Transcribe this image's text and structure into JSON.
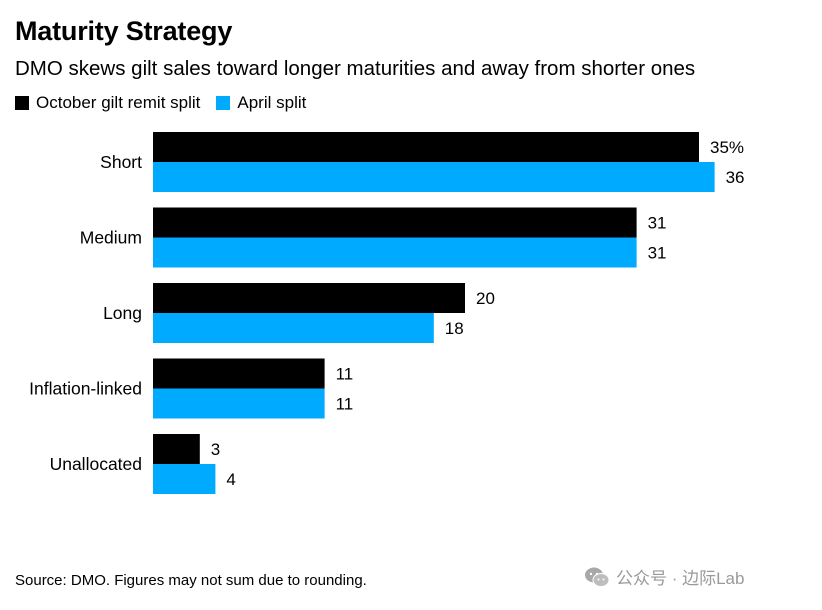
{
  "header": {
    "title": "Maturity Strategy",
    "subtitle": "DMO skews gilt sales toward longer maturities and away from shorter ones"
  },
  "colors": {
    "october": "#000000",
    "april": "#00aaff"
  },
  "chart_data": {
    "type": "bar",
    "orientation": "horizontal",
    "categories": [
      "Short",
      "Medium",
      "Long",
      "Inflation-linked",
      "Unallocated"
    ],
    "series": [
      {
        "name": "October gilt remit split",
        "values": [
          35,
          31,
          20,
          11,
          3
        ],
        "labels": [
          "35%",
          "31",
          "20",
          "11",
          "3"
        ]
      },
      {
        "name": "April split",
        "values": [
          36,
          31,
          18,
          11,
          4
        ],
        "labels": [
          "36",
          "31",
          "18",
          "11",
          "4"
        ]
      }
    ],
    "legend_position": "top-left",
    "grid": false
  },
  "footer": {
    "source": "Source: DMO. Figures may not sum due to rounding."
  },
  "watermark": {
    "text": "公众号 · 边际Lab",
    "icon": "wechat-icon"
  }
}
